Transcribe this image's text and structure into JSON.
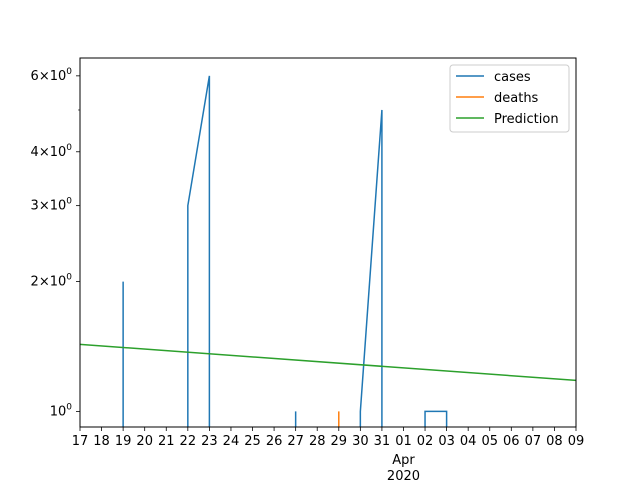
{
  "chart_data": {
    "type": "line",
    "title": "",
    "xlabel": "",
    "ylabel": "",
    "y_scale": "log",
    "ylim": [
      0.92,
      6.6
    ],
    "xlim": [
      "2020-03-17",
      "2020-04-09"
    ],
    "grid": false,
    "legend_position": "top-right",
    "x_ticks": [
      {
        "date": "2020-03-17",
        "label": "17"
      },
      {
        "date": "2020-03-18",
        "label": "18"
      },
      {
        "date": "2020-03-19",
        "label": "19"
      },
      {
        "date": "2020-03-20",
        "label": "20"
      },
      {
        "date": "2020-03-21",
        "label": "21"
      },
      {
        "date": "2020-03-22",
        "label": "22"
      },
      {
        "date": "2020-03-23",
        "label": "23"
      },
      {
        "date": "2020-03-24",
        "label": "24"
      },
      {
        "date": "2020-03-25",
        "label": "25"
      },
      {
        "date": "2020-03-26",
        "label": "26"
      },
      {
        "date": "2020-03-27",
        "label": "27"
      },
      {
        "date": "2020-03-28",
        "label": "28"
      },
      {
        "date": "2020-03-29",
        "label": "29"
      },
      {
        "date": "2020-03-30",
        "label": "30"
      },
      {
        "date": "2020-03-31",
        "label": "31"
      },
      {
        "date": "2020-04-01",
        "label": "01"
      },
      {
        "date": "2020-04-02",
        "label": "02"
      },
      {
        "date": "2020-04-03",
        "label": "03"
      },
      {
        "date": "2020-04-04",
        "label": "04"
      },
      {
        "date": "2020-04-05",
        "label": "05"
      },
      {
        "date": "2020-04-06",
        "label": "06"
      },
      {
        "date": "2020-04-07",
        "label": "07"
      },
      {
        "date": "2020-04-08",
        "label": "08"
      },
      {
        "date": "2020-04-09",
        "label": "09"
      }
    ],
    "x_secondary_label": {
      "date": "2020-04-01",
      "month": "Apr",
      "year": "2020"
    },
    "y_ticks": [
      {
        "value": 1,
        "label": "10^0"
      },
      {
        "value": 2,
        "label": "2×10^0"
      },
      {
        "value": 3,
        "label": "3×10^0"
      },
      {
        "value": 4,
        "label": "4×10^0"
      },
      {
        "value": 6,
        "label": "6×10^0"
      }
    ],
    "y_minor_ticks": [
      5
    ],
    "series": [
      {
        "name": "cases",
        "color": "#1f77b4",
        "segments": [
          [
            {
              "x": "2020-03-19",
              "y": 2
            }
          ],
          [
            {
              "x": "2020-03-22",
              "y": 3
            },
            {
              "x": "2020-03-23",
              "y": 6
            }
          ],
          [
            {
              "x": "2020-03-27",
              "y": 1
            }
          ],
          [
            {
              "x": "2020-03-30",
              "y": 1
            },
            {
              "x": "2020-03-31",
              "y": 5
            }
          ],
          [
            {
              "x": "2020-04-02",
              "y": 1
            },
            {
              "x": "2020-04-03",
              "y": 1
            }
          ]
        ]
      },
      {
        "name": "deaths",
        "color": "#ff7f0e",
        "segments": [
          [
            {
              "x": "2020-03-29",
              "y": 1
            }
          ]
        ]
      },
      {
        "name": "Prediction",
        "color": "#2ca02c",
        "segments": [
          [
            {
              "x": "2020-03-17",
              "y": 1.43
            },
            {
              "x": "2020-04-09",
              "y": 1.18
            }
          ]
        ]
      }
    ]
  }
}
